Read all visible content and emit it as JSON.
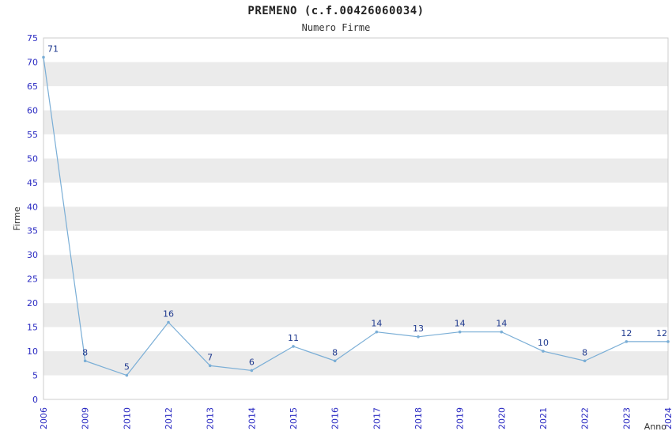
{
  "chart_data": {
    "type": "line",
    "title": "PREMENO (c.f.00426060034)",
    "subtitle": "Numero Firme",
    "xlabel": "Anno",
    "ylabel": "Firme",
    "categories": [
      "2006",
      "2009",
      "2010",
      "2012",
      "2013",
      "2014",
      "2015",
      "2016",
      "2017",
      "2018",
      "2019",
      "2020",
      "2021",
      "2022",
      "2023",
      "2024"
    ],
    "values": [
      71,
      8,
      5,
      16,
      7,
      6,
      11,
      8,
      14,
      13,
      14,
      14,
      10,
      8,
      12,
      12
    ],
    "ylim": [
      0,
      75
    ],
    "ytick_step": 5,
    "grid": "banded-rows",
    "legend": "none"
  },
  "colors": {
    "line": "#7aaed6",
    "band_gray": "#ebebeb",
    "band_white": "#ffffff",
    "plot_border": "#cccccc",
    "tick_label": "#2a2ac2",
    "value_label": "#1f3a8f",
    "axis_title": "#333333",
    "title_text": "#222222"
  }
}
